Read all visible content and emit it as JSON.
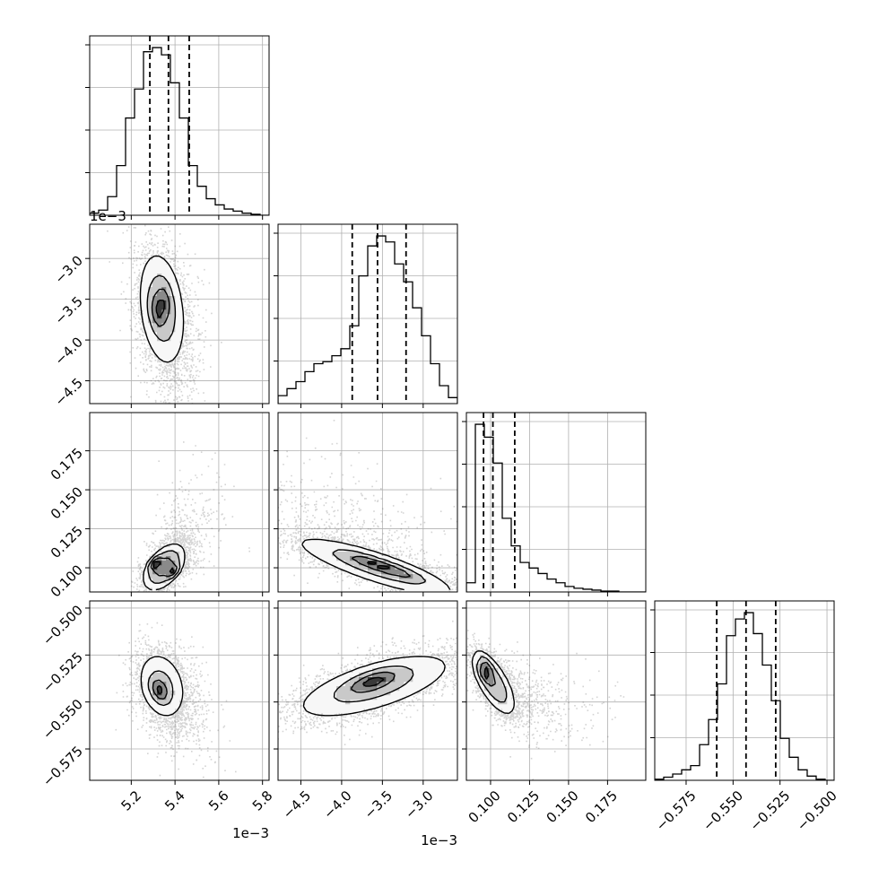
{
  "colors": {
    "line": "#000000",
    "grid": "#b0b0b0",
    "scatter": "#555555",
    "background": "#ffffff"
  },
  "chart_data": {
    "type": "corner",
    "grid": true,
    "parameters": [
      {
        "range": [
          0.00501,
          0.00583
        ],
        "ticks": [
          0.0052,
          0.0054,
          0.0056,
          0.0058
        ],
        "tick_labels": [
          "5.2",
          "5.4",
          "5.6",
          "5.8"
        ],
        "offset": "1e−3",
        "quantiles": [
          0.005285,
          0.00537,
          0.005465
        ]
      },
      {
        "range": [
          -0.00478,
          -0.00258
        ],
        "ticks": [
          -0.0045,
          -0.004,
          -0.0035,
          -0.003
        ],
        "tick_labels": [
          "−4.5",
          "−4.0",
          "−3.5",
          "−3.0"
        ],
        "offset": "1e−3",
        "quantiles": [
          -0.00387,
          -0.00356,
          -0.00321
        ]
      },
      {
        "range": [
          0.0845,
          0.1995
        ],
        "ticks": [
          0.1,
          0.125,
          0.15,
          0.175
        ],
        "tick_labels": [
          "0.100",
          "0.125",
          "0.150",
          "0.175"
        ],
        "offset": "",
        "quantiles": [
          0.0955,
          0.1015,
          0.1155
        ]
      },
      {
        "range": [
          -0.5917,
          -0.4962
        ],
        "ticks": [
          -0.575,
          -0.55,
          -0.525,
          -0.5
        ],
        "tick_labels": [
          "−0.575",
          "−0.550",
          "−0.525",
          "−0.500"
        ],
        "offset": "",
        "quantiles": [
          -0.5587,
          -0.5431,
          -0.5273
        ]
      }
    ],
    "histograms": [
      {
        "param": 0,
        "bins": [
          0.00501,
          0.005051,
          0.005092,
          0.005133,
          0.005174,
          0.005215,
          0.005256,
          0.005297,
          0.005338,
          0.005379,
          0.00542,
          0.005461,
          0.005502,
          0.005543,
          0.005584,
          0.005625,
          0.005666,
          0.005707,
          0.005748,
          0.005789,
          0.00583
        ],
        "counts": [
          2,
          5,
          18,
          48,
          94,
          122,
          158,
          162,
          155,
          128,
          94,
          48,
          28,
          16,
          10,
          6,
          4,
          2,
          1,
          0
        ]
      },
      {
        "param": 1,
        "bins": [
          -0.00478,
          -0.00467,
          -0.00456,
          -0.00445,
          -0.00434,
          -0.00423,
          -0.00412,
          -0.00401,
          -0.0039,
          -0.00379,
          -0.00368,
          -0.00357,
          -0.00346,
          -0.00335,
          -0.00324,
          -0.00313,
          -0.00302,
          -0.00291,
          -0.0028,
          -0.00269,
          -0.00258
        ],
        "counts": [
          8,
          15,
          22,
          32,
          40,
          42,
          48,
          55,
          78,
          128,
          158,
          168,
          162,
          140,
          122,
          96,
          68,
          40,
          18,
          6
        ]
      },
      {
        "param": 2,
        "bins": [
          0.0845,
          0.09025,
          0.096,
          0.10175,
          0.1075,
          0.11325,
          0.119,
          0.12475,
          0.1305,
          0.13625,
          0.142,
          0.14775,
          0.1535,
          0.15925,
          0.165,
          0.17075,
          0.1765,
          0.18225,
          0.188,
          0.19375,
          0.1995
        ],
        "counts": [
          10,
          182,
          168,
          140,
          80,
          50,
          32,
          26,
          20,
          14,
          10,
          6,
          4,
          3,
          2,
          1,
          1,
          0,
          0,
          0
        ]
      },
      {
        "param": 3,
        "bins": [
          -0.5917,
          -0.58693,
          -0.58215,
          -0.57738,
          -0.5726,
          -0.56783,
          -0.56305,
          -0.55828,
          -0.5535,
          -0.54873,
          -0.54395,
          -0.53918,
          -0.5344,
          -0.52963,
          -0.52485,
          -0.52008,
          -0.5153,
          -0.51053,
          -0.50575,
          -0.50098,
          -0.4962
        ],
        "counts": [
          1,
          3,
          6,
          10,
          14,
          34,
          58,
          92,
          138,
          154,
          160,
          140,
          110,
          76,
          40,
          22,
          10,
          4,
          1,
          0
        ]
      }
    ],
    "pairs": [
      {
        "x": 0,
        "y": 1,
        "center": [
          0.00534,
          -0.00362
        ],
        "cov": [
          [
            3.6e-09,
            -6e-09
          ],
          [
            -6e-09,
            1.6e-07
          ]
        ],
        "skew": [
          0.0001,
          -0.0011
        ],
        "peaks": [
          [
            0.00532,
            -0.00365,
            1.0
          ],
          [
            0.00535,
            -0.00352,
            0.75
          ]
        ]
      },
      {
        "x": 0,
        "y": 2,
        "center": [
          0.00535,
          0.1005
        ],
        "cov": [
          [
            2.5e-09,
            2e-07
          ],
          [
            2e-07,
            6.2e-05
          ]
        ],
        "skew": [
          0.00013,
          0.03
        ],
        "peaks": [
          [
            0.00531,
            0.1025,
            1.0
          ],
          [
            0.00539,
            0.098,
            0.9
          ]
        ]
      },
      {
        "x": 0,
        "y": 3,
        "center": [
          0.00534,
          -0.5415
        ],
        "cov": [
          [
            4e-09,
            -1.5e-07
          ],
          [
            -1.5e-07,
            0.00011
          ]
        ],
        "skew": [
          0.00012,
          -0.02
        ],
        "peaks": [
          [
            0.00532,
            -0.5425,
            1.0
          ],
          [
            0.00534,
            -0.545,
            0.9
          ]
        ]
      },
      {
        "x": 1,
        "y": 2,
        "center": [
          -0.00358,
          0.1005
        ],
        "cov": [
          [
            3.4e-07,
            -5.6e-06
          ],
          [
            -5.6e-06,
            0.00013
          ]
        ],
        "skew": [
          -0.0006,
          0.045
        ],
        "peaks": [
          [
            -0.00366,
            0.1035,
            1.0
          ],
          [
            -0.00334,
            0.098,
            0.95
          ]
        ]
      },
      {
        "x": 1,
        "y": 3,
        "center": [
          -0.0036,
          -0.5415
        ],
        "cov": [
          [
            3.2e-07,
            3.8e-06
          ],
          [
            3.8e-06,
            0.000105
          ]
        ],
        "skew": [
          0.0,
          0.0
        ],
        "peaks": [
          [
            -0.00364,
            -0.5405,
            1.0
          ],
          [
            -0.00358,
            -0.537,
            0.8
          ]
        ]
      },
      {
        "x": 2,
        "y": 3,
        "center": [
          0.1018,
          -0.5398
        ],
        "cov": [
          [
            6e-05,
            -5e-05
          ],
          [
            -5e-05,
            9e-05
          ]
        ],
        "skew": [
          0.04,
          -0.015
        ],
        "peaks": [
          [
            0.0962,
            -0.5355,
            1.0
          ],
          [
            0.0975,
            -0.531,
            0.9
          ]
        ]
      }
    ],
    "contour_levels": [
      "0.5σ",
      "1σ",
      "1.5σ",
      "2σ"
    ]
  }
}
